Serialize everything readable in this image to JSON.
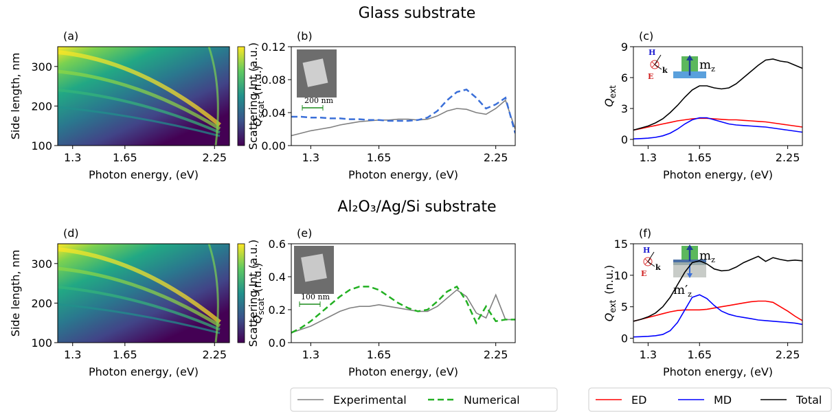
{
  "section_titles": [
    "Glass substrate",
    "Al₂O₃/Ag/Si substrate"
  ],
  "chart_data": [
    {
      "type": "heatmap",
      "panel": "(a)",
      "xlabel": "Photon energy, (eV)",
      "ylabel": "Side length, nm",
      "colorbar_label": {
        "symbol": "Q",
        "subscript": "scat",
        "unit": "(n.u.)"
      },
      "xlim": [
        1.2,
        2.35
      ],
      "xticks": [
        1.3,
        1.65,
        2.25
      ],
      "ylim": [
        100,
        350
      ],
      "yticks": [
        100,
        200,
        300
      ]
    },
    {
      "type": "line",
      "panel": "(b)",
      "xlabel": "Photon energy, (eV)",
      "ylabel": "Scattering Int (a.u.)",
      "inset_scale": "200 nm",
      "xlim": [
        1.2,
        2.35
      ],
      "xticks": [
        1.3,
        1.65,
        2.25
      ],
      "ylim": [
        0,
        0.12
      ],
      "yticks": [
        {
          "value": 0,
          "label": "0.00"
        },
        0.04,
        0.08,
        0.12
      ],
      "x": [
        1.2,
        1.25,
        1.3,
        1.35,
        1.4,
        1.45,
        1.5,
        1.55,
        1.6,
        1.65,
        1.7,
        1.75,
        1.8,
        1.85,
        1.9,
        1.95,
        2.0,
        2.05,
        2.1,
        2.15,
        2.2,
        2.25,
        2.3,
        2.35
      ],
      "series": [
        {
          "name": "Experimental",
          "color": "#808080",
          "linestyle": "solid",
          "values": [
            0.012,
            0.015,
            0.018,
            0.02,
            0.022,
            0.025,
            0.027,
            0.029,
            0.03,
            0.031,
            0.031,
            0.032,
            0.032,
            0.031,
            0.032,
            0.036,
            0.042,
            0.045,
            0.044,
            0.04,
            0.038,
            0.045,
            0.055,
            0.02
          ]
        },
        {
          "name": "Numerical",
          "color": "#3a6fd8",
          "linestyle": "dashed",
          "values": [
            0.035,
            0.035,
            0.034,
            0.034,
            0.033,
            0.033,
            0.032,
            0.032,
            0.031,
            0.031,
            0.03,
            0.03,
            0.03,
            0.031,
            0.034,
            0.042,
            0.055,
            0.065,
            0.068,
            0.058,
            0.045,
            0.05,
            0.058,
            0.015
          ]
        }
      ]
    },
    {
      "type": "line",
      "panel": "(c)",
      "xlabel": "Photon energy, (eV)",
      "ylabel": {
        "symbol": "Q",
        "subscript": "ext"
      },
      "annotations": [
        "H",
        "E",
        "k",
        "m",
        "z"
      ],
      "xlim": [
        1.2,
        2.35
      ],
      "xticks": [
        1.3,
        1.65,
        2.25
      ],
      "ylim": [
        -0.6,
        9
      ],
      "yticks": [
        0,
        3,
        6,
        9
      ],
      "x": [
        1.2,
        1.25,
        1.3,
        1.35,
        1.4,
        1.45,
        1.5,
        1.55,
        1.6,
        1.65,
        1.7,
        1.75,
        1.8,
        1.85,
        1.9,
        1.95,
        2.0,
        2.05,
        2.1,
        2.15,
        2.2,
        2.25,
        2.3,
        2.35
      ],
      "series": [
        {
          "name": "ED",
          "color": "#ff0000",
          "linestyle": "solid",
          "values": [
            0.9,
            1.05,
            1.2,
            1.35,
            1.5,
            1.65,
            1.8,
            1.9,
            2.0,
            2.05,
            2.05,
            2.0,
            1.95,
            1.9,
            1.9,
            1.85,
            1.8,
            1.75,
            1.7,
            1.6,
            1.5,
            1.4,
            1.3,
            1.2
          ]
        },
        {
          "name": "MD",
          "color": "#0000ff",
          "linestyle": "solid",
          "values": [
            0.05,
            0.08,
            0.12,
            0.2,
            0.35,
            0.6,
            1.0,
            1.5,
            1.9,
            2.1,
            2.1,
            1.9,
            1.7,
            1.5,
            1.4,
            1.35,
            1.3,
            1.25,
            1.2,
            1.1,
            1.0,
            0.9,
            0.8,
            0.7
          ]
        },
        {
          "name": "Total",
          "color": "#000000",
          "linestyle": "solid",
          "values": [
            0.9,
            1.1,
            1.3,
            1.6,
            2.0,
            2.6,
            3.3,
            4.1,
            4.8,
            5.2,
            5.2,
            5.0,
            4.9,
            5.0,
            5.4,
            6.0,
            6.6,
            7.2,
            7.7,
            7.8,
            7.6,
            7.5,
            7.2,
            6.9
          ]
        }
      ]
    },
    {
      "type": "heatmap",
      "panel": "(d)",
      "xlabel": "Photon energy, (eV)",
      "ylabel": "Side length, nm",
      "colorbar_label": {
        "symbol": "Q",
        "subscript": "scat",
        "unit": "(n.u.)"
      },
      "xlim": [
        1.2,
        2.35
      ],
      "xticks": [
        1.3,
        1.65,
        2.25
      ],
      "ylim": [
        100,
        350
      ],
      "yticks": [
        100,
        200,
        300
      ]
    },
    {
      "type": "line",
      "panel": "(e)",
      "xlabel": "Photon energy, (eV)",
      "ylabel": "Scattering Int (a.u.)",
      "inset_scale": "100 nm",
      "xlim": [
        1.2,
        2.35
      ],
      "xticks": [
        1.3,
        1.65,
        2.25
      ],
      "ylim": [
        0,
        0.6
      ],
      "yticks": [
        {
          "value": 0,
          "label": "0.0"
        },
        0.2,
        0.4,
        0.6
      ],
      "x": [
        1.2,
        1.25,
        1.3,
        1.35,
        1.4,
        1.45,
        1.5,
        1.55,
        1.6,
        1.65,
        1.7,
        1.75,
        1.8,
        1.85,
        1.9,
        1.95,
        2.0,
        2.05,
        2.1,
        2.15,
        2.2,
        2.25,
        2.3,
        2.35
      ],
      "series": [
        {
          "name": "Experimental",
          "color": "#808080",
          "linestyle": "solid",
          "values": [
            0.06,
            0.08,
            0.1,
            0.13,
            0.16,
            0.19,
            0.21,
            0.22,
            0.22,
            0.23,
            0.22,
            0.21,
            0.2,
            0.19,
            0.19,
            0.22,
            0.27,
            0.32,
            0.28,
            0.18,
            0.15,
            0.29,
            0.14,
            0.14
          ]
        },
        {
          "name": "Numerical",
          "color": "#22b022",
          "linestyle": "dashed",
          "values": [
            0.06,
            0.09,
            0.13,
            0.18,
            0.23,
            0.28,
            0.32,
            0.34,
            0.34,
            0.32,
            0.28,
            0.24,
            0.21,
            0.19,
            0.2,
            0.25,
            0.31,
            0.34,
            0.25,
            0.12,
            0.22,
            0.13,
            0.14,
            0.14
          ]
        }
      ]
    },
    {
      "type": "line",
      "panel": "(f)",
      "xlabel": "Photon energy, (eV)",
      "ylabel": {
        "symbol": "Q",
        "subscript": "ext",
        "unit": "(n.u.)"
      },
      "annotations": [
        "H",
        "E",
        "k",
        "m",
        "z",
        "m′",
        "z"
      ],
      "xlim": [
        1.2,
        2.35
      ],
      "xticks": [
        1.3,
        1.65,
        2.25
      ],
      "ylim": [
        -0.7,
        15
      ],
      "yticks": [
        0,
        5,
        10,
        15
      ],
      "x": [
        1.2,
        1.25,
        1.3,
        1.35,
        1.4,
        1.45,
        1.5,
        1.55,
        1.6,
        1.65,
        1.7,
        1.75,
        1.8,
        1.85,
        1.9,
        1.95,
        2.0,
        2.05,
        2.1,
        2.15,
        2.2,
        2.25,
        2.3,
        2.35
      ],
      "series": [
        {
          "name": "ED",
          "color": "#ff0000",
          "linestyle": "solid",
          "values": [
            2.7,
            3.0,
            3.3,
            3.6,
            3.9,
            4.2,
            4.4,
            4.5,
            4.5,
            4.5,
            4.6,
            4.8,
            5.0,
            5.2,
            5.4,
            5.6,
            5.8,
            5.9,
            5.9,
            5.7,
            5.0,
            4.3,
            3.5,
            2.8
          ]
        },
        {
          "name": "MD",
          "color": "#0000ff",
          "linestyle": "solid",
          "values": [
            0.2,
            0.25,
            0.3,
            0.4,
            0.6,
            1.2,
            2.5,
            4.5,
            6.5,
            6.9,
            6.3,
            5.2,
            4.3,
            3.8,
            3.5,
            3.3,
            3.1,
            2.9,
            2.8,
            2.7,
            2.6,
            2.5,
            2.4,
            2.2
          ]
        },
        {
          "name": "Total",
          "color": "#000000",
          "linestyle": "solid",
          "values": [
            2.7,
            3.0,
            3.4,
            4.0,
            5.0,
            6.5,
            8.5,
            10.5,
            12.0,
            12.3,
            11.8,
            11.0,
            10.7,
            10.8,
            11.3,
            12.0,
            12.5,
            13.0,
            12.2,
            12.8,
            12.5,
            12.3,
            12.4,
            12.3
          ]
        }
      ]
    }
  ]
}
